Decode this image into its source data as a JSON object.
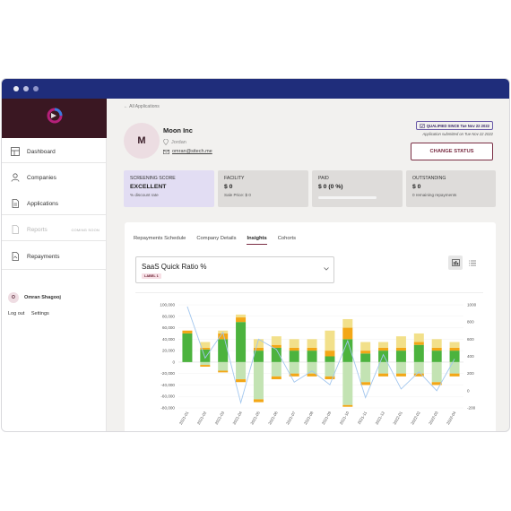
{
  "sidebar": {
    "items": [
      {
        "label": "Dashboard"
      },
      {
        "label": "Companies"
      },
      {
        "label": "Applications"
      },
      {
        "label": "Reports",
        "badge": "COMING SOON"
      },
      {
        "label": "Repayments"
      }
    ],
    "user": {
      "initial": "O",
      "name": "Omran Shagooj"
    },
    "logout": "Log out",
    "settings": "Settings"
  },
  "header": {
    "back": "All Applications",
    "avatar_initial": "M",
    "company": "Moon Inc",
    "location": "Jordan",
    "email": "omran@sitech.me",
    "qualified": "QUALIFIED SINCE Tue Nov 22 2022",
    "submitted": "Application submitted on Tue Nov 22 2022",
    "change_status": "CHANGE STATUS"
  },
  "cards": [
    {
      "label": "SCREENING SCORE",
      "value": "EXCELLENT",
      "sub": "% discount rate"
    },
    {
      "label": "FACILITY",
      "value": "$ 0",
      "sub": "Sale Price: $ 0"
    },
    {
      "label": "PAID",
      "value": "$ 0 (0 %)",
      "sub": ""
    },
    {
      "label": "OUTSTANDING",
      "value": "$ 0",
      "sub": "0 remaining repayments"
    }
  ],
  "tabs": [
    "Repayments Schedule",
    "Company Details",
    "Insights",
    "Cohorts"
  ],
  "active_tab": "Insights",
  "metric": {
    "value": "SaaS Quick Ratio %",
    "chip": "LABEL 1"
  },
  "colors": {
    "brand": "#7a2e44",
    "titlebar": "#1f2d7b",
    "dark_green": "#4cb33e",
    "light_green": "#c3e3b3",
    "yellow": "#f2e08a",
    "orange": "#f3a716",
    "line": "#a3c7ee"
  },
  "chart_data": {
    "type": "bar",
    "categories": [
      "2021-01",
      "2021-02",
      "2021-03",
      "2021-04",
      "2021-05",
      "2021-06",
      "2021-07",
      "2021-08",
      "2021-09",
      "2021-10",
      "2021-11",
      "2021-12",
      "2022-01",
      "2022-02",
      "2022-03",
      "2022-04"
    ],
    "left_ticks": [
      "100,000",
      "80,000",
      "60,000",
      "40,000",
      "20,000",
      "0",
      "-20,000",
      "-40,000",
      "-60,000",
      "-80,000"
    ],
    "right_ticks": [
      "1000",
      "800",
      "600",
      "400",
      "200",
      "0",
      "-200"
    ],
    "ylim": [
      -80000,
      100000
    ],
    "y2lim": [
      -200,
      1000
    ],
    "series": [
      {
        "values": [
          50000,
          22000,
          40000,
          70000,
          20000,
          25000,
          20000,
          20000,
          10000,
          40000,
          15000,
          20000,
          20000,
          30000,
          20000,
          20000
        ]
      },
      {
        "values": [
          5000,
          3000,
          10000,
          8000,
          5000,
          5000,
          5000,
          5000,
          10000,
          20000,
          5000,
          5000,
          5000,
          5000,
          5000,
          5000
        ]
      },
      {
        "values": [
          0,
          10000,
          5000,
          5000,
          15000,
          15000,
          15000,
          15000,
          35000,
          15000,
          15000,
          10000,
          20000,
          15000,
          15000,
          10000
        ]
      },
      {
        "values": [
          0,
          -5000,
          -15000,
          -30000,
          -65000,
          -25000,
          -20000,
          -20000,
          -25000,
          -75000,
          -35000,
          -20000,
          -20000,
          -20000,
          -35000,
          -20000
        ]
      },
      {
        "values": [
          0,
          -3000,
          -3000,
          -5000,
          -5000,
          -5000,
          -5000,
          -5000,
          -5000,
          -3000,
          -5000,
          -5000,
          -5000,
          -5000,
          -5000,
          -5000
        ]
      },
      {
        "type": "line",
        "values": [
          980,
          380,
          680,
          -140,
          600,
          480,
          100,
          230,
          70,
          580,
          -80,
          420,
          20,
          220,
          0,
          370
        ]
      }
    ]
  }
}
